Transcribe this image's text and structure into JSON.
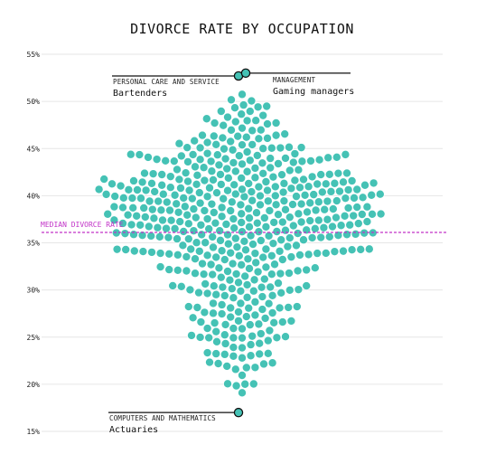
{
  "chart_data": {
    "type": "scatter",
    "subtype": "beeswarm",
    "title": "DIVORCE RATE BY OCCUPATION",
    "xlabel": "",
    "ylabel": "",
    "ylim": [
      15,
      55
    ],
    "y_ticks": [
      {
        "value": 15,
        "label": "15%"
      },
      {
        "value": 20,
        "label": "20%"
      },
      {
        "value": 25,
        "label": "25%"
      },
      {
        "value": 30,
        "label": "30%"
      },
      {
        "value": 35,
        "label": "35%"
      },
      {
        "value": 40,
        "label": "40%"
      },
      {
        "value": 45,
        "label": "45%"
      },
      {
        "value": 50,
        "label": "50%"
      },
      {
        "value": 55,
        "label": "55%"
      }
    ],
    "grid": true,
    "median": {
      "value": 36.1,
      "label": "MEDIAN DIVORCE RATE"
    },
    "distribution": [
      {
        "lo": 19,
        "hi": 20,
        "count": 2
      },
      {
        "lo": 20,
        "hi": 21,
        "count": 4
      },
      {
        "lo": 21,
        "hi": 22,
        "count": 4
      },
      {
        "lo": 22,
        "hi": 23,
        "count": 6
      },
      {
        "lo": 23,
        "hi": 24,
        "count": 8
      },
      {
        "lo": 24,
        "hi": 25,
        "count": 10
      },
      {
        "lo": 25,
        "hi": 26,
        "count": 10
      },
      {
        "lo": 26,
        "hi": 27,
        "count": 10
      },
      {
        "lo": 27,
        "hi": 28,
        "count": 10
      },
      {
        "lo": 28,
        "hi": 29,
        "count": 12
      },
      {
        "lo": 29,
        "hi": 30,
        "count": 12
      },
      {
        "lo": 30,
        "hi": 31,
        "count": 14
      },
      {
        "lo": 31,
        "hi": 32,
        "count": 14
      },
      {
        "lo": 32,
        "hi": 33,
        "count": 16
      },
      {
        "lo": 33,
        "hi": 34,
        "count": 20
      },
      {
        "lo": 34,
        "hi": 35,
        "count": 24
      },
      {
        "lo": 35,
        "hi": 36,
        "count": 28
      },
      {
        "lo": 36,
        "hi": 37,
        "count": 30
      },
      {
        "lo": 37,
        "hi": 38,
        "count": 32
      },
      {
        "lo": 38,
        "hi": 39,
        "count": 32
      },
      {
        "lo": 39,
        "hi": 40,
        "count": 34
      },
      {
        "lo": 40,
        "hi": 41,
        "count": 34
      },
      {
        "lo": 41,
        "hi": 42,
        "count": 30
      },
      {
        "lo": 42,
        "hi": 43,
        "count": 24
      },
      {
        "lo": 43,
        "hi": 44,
        "count": 20
      },
      {
        "lo": 44,
        "hi": 45,
        "count": 16
      },
      {
        "lo": 45,
        "hi": 46,
        "count": 14
      },
      {
        "lo": 46,
        "hi": 47,
        "count": 12
      },
      {
        "lo": 47,
        "hi": 48,
        "count": 8
      },
      {
        "lo": 48,
        "hi": 49,
        "count": 6
      },
      {
        "lo": 49,
        "hi": 50,
        "count": 4
      },
      {
        "lo": 50,
        "hi": 51,
        "count": 3
      }
    ],
    "annotations": [
      {
        "category": "PERSONAL CARE AND SERVICE",
        "occupation": "Bartenders",
        "value": 52.7,
        "side": "left"
      },
      {
        "category": "MANAGEMENT",
        "occupation": "Gaming managers",
        "value": 53.0,
        "side": "right"
      },
      {
        "category": "COMPUTERS AND MATHEMATICS",
        "occupation": "Actuaries",
        "value": 17.0,
        "side": "left"
      }
    ],
    "colors": {
      "dots": "#45c2b5",
      "median": "#c233c8",
      "grid": "#e6e6e6"
    }
  }
}
